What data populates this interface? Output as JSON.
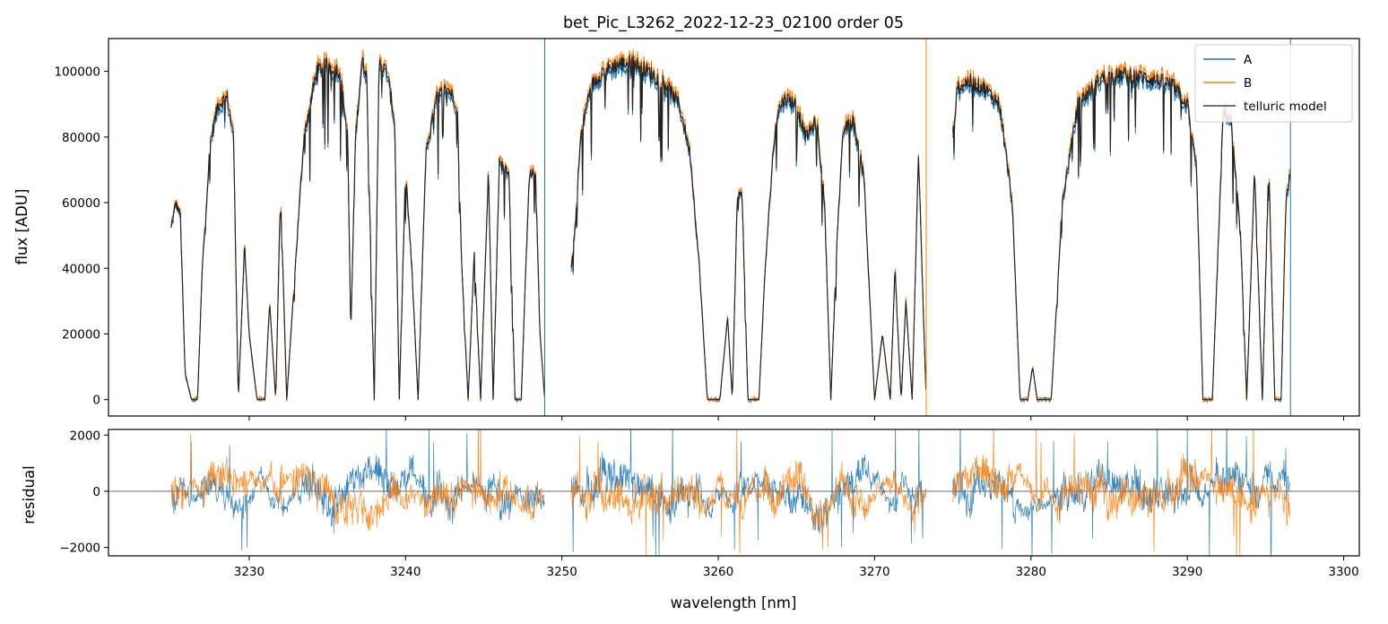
{
  "chart_data": [
    {
      "type": "line",
      "title": "bet_Pic_L3262_2022-12-23_02100  order 05",
      "xlabel": "",
      "ylabel": "flux [ADU]",
      "xlim": [
        3221,
        3301
      ],
      "ylim": [
        -5000,
        110000
      ],
      "xticks": [
        3230,
        3240,
        3250,
        3260,
        3270,
        3280,
        3290,
        3300
      ],
      "yticks": [
        0,
        20000,
        40000,
        60000,
        80000,
        100000
      ],
      "ytick_labels": [
        "0",
        "20000",
        "40000",
        "60000",
        "80000",
        "100000"
      ],
      "grid": false,
      "legend_position": "top-right",
      "legend": [
        "A",
        "B",
        "telluric model"
      ],
      "colors": {
        "A": "#1f77b4",
        "B": "#ff7f0e",
        "telluric model": "#000000"
      },
      "segments": [
        {
          "x_range": [
            3225.0,
            3248.9
          ],
          "note": ""
        },
        {
          "x_range": [
            3250.6,
            3273.3
          ],
          "note": ""
        },
        {
          "x_range": [
            3275.0,
            3296.6
          ],
          "note": ""
        }
      ],
      "series": [
        {
          "name": "telluric model",
          "x": [
            3225.0,
            3225.3,
            3225.6,
            3225.9,
            3226.3,
            3226.7,
            3227.0,
            3227.5,
            3228.0,
            3228.6,
            3229.0,
            3229.3,
            3229.7,
            3230.0,
            3230.5,
            3231.0,
            3231.3,
            3231.7,
            3232.0,
            3232.4,
            3232.8,
            3233.5,
            3234.3,
            3235.0,
            3235.8,
            3236.3,
            3236.5,
            3236.8,
            3237.2,
            3237.5,
            3238.0,
            3238.3,
            3238.8,
            3239.3,
            3239.6,
            3240.0,
            3240.4,
            3240.8,
            3241.3,
            3242.0,
            3242.7,
            3243.3,
            3243.6,
            3244.0,
            3244.4,
            3244.8,
            3245.3,
            3245.6,
            3246.0,
            3246.6,
            3247.0,
            3247.4,
            3247.9,
            3248.3,
            3248.6,
            3248.9,
            3250.6,
            3250.8,
            3251.2,
            3251.8,
            3252.6,
            3253.5,
            3254.5,
            3255.5,
            3256.5,
            3257.5,
            3258.2,
            3258.8,
            3259.3,
            3259.7,
            3260.1,
            3260.6,
            3260.9,
            3261.2,
            3261.5,
            3261.9,
            3262.3,
            3262.6,
            3263.0,
            3263.5,
            3263.8,
            3264.3,
            3265.0,
            3265.6,
            3266.3,
            3266.8,
            3267.2,
            3267.6,
            3268.0,
            3268.6,
            3269.3,
            3270.0,
            3270.5,
            3271.0,
            3271.3,
            3271.7,
            3272.0,
            3272.4,
            3272.8,
            3273.3,
            3275.0,
            3275.3,
            3276.0,
            3277.0,
            3278.0,
            3278.8,
            3279.3,
            3279.8,
            3280.1,
            3280.4,
            3280.7,
            3281.3,
            3282.0,
            3283.0,
            3284.5,
            3286.0,
            3287.5,
            3289.0,
            3290.0,
            3290.6,
            3291.0,
            3291.6,
            3292.3,
            3292.8,
            3293.4,
            3293.8,
            3294.3,
            3294.8,
            3295.2,
            3295.6,
            3296.0,
            3296.3,
            3296.6
          ],
          "y": [
            52000,
            60000,
            56000,
            8000,
            0,
            0,
            40000,
            78000,
            90000,
            92000,
            80000,
            0,
            47000,
            20000,
            0,
            0,
            30000,
            0,
            64000,
            0,
            30000,
            80000,
            100000,
            102000,
            100000,
            80000,
            20000,
            80000,
            103000,
            100000,
            0,
            102000,
            100000,
            85000,
            0,
            70000,
            40000,
            0,
            75000,
            92000,
            95000,
            90000,
            40000,
            0,
            45000,
            0,
            70000,
            0,
            72000,
            70000,
            0,
            0,
            68000,
            70000,
            20000,
            0,
            40000,
            50000,
            80000,
            95000,
            100000,
            102000,
            103000,
            100000,
            97000,
            90000,
            75000,
            40000,
            0,
            0,
            0,
            25000,
            0,
            60000,
            65000,
            0,
            0,
            0,
            40000,
            75000,
            88000,
            92000,
            90000,
            80000,
            85000,
            60000,
            0,
            50000,
            82000,
            85000,
            70000,
            0,
            20000,
            0,
            40000,
            0,
            30000,
            0,
            75000,
            0,
            80000,
            95000,
            97000,
            95000,
            90000,
            60000,
            0,
            0,
            10000,
            0,
            0,
            0,
            60000,
            90000,
            98000,
            99000,
            98000,
            96000,
            90000,
            70000,
            0,
            0,
            88000,
            85000,
            50000,
            0,
            70000,
            0,
            72000,
            0,
            0,
            60000,
            70000
          ]
        }
      ]
    },
    {
      "type": "line",
      "title": "",
      "xlabel": "wavelength [nm]",
      "ylabel": "residual",
      "xlim": [
        3221,
        3301
      ],
      "ylim": [
        -2300,
        2200
      ],
      "xticks": [
        3230,
        3240,
        3250,
        3260,
        3270,
        3280,
        3290,
        3300
      ],
      "xtick_labels": [
        "3230",
        "3240",
        "3250",
        "3260",
        "3270",
        "3280",
        "3290",
        "3300"
      ],
      "yticks": [
        -2000,
        0,
        2000
      ],
      "ytick_labels": [
        "−2000",
        "0",
        "2000"
      ],
      "grid": false,
      "zero_line": true
    }
  ]
}
